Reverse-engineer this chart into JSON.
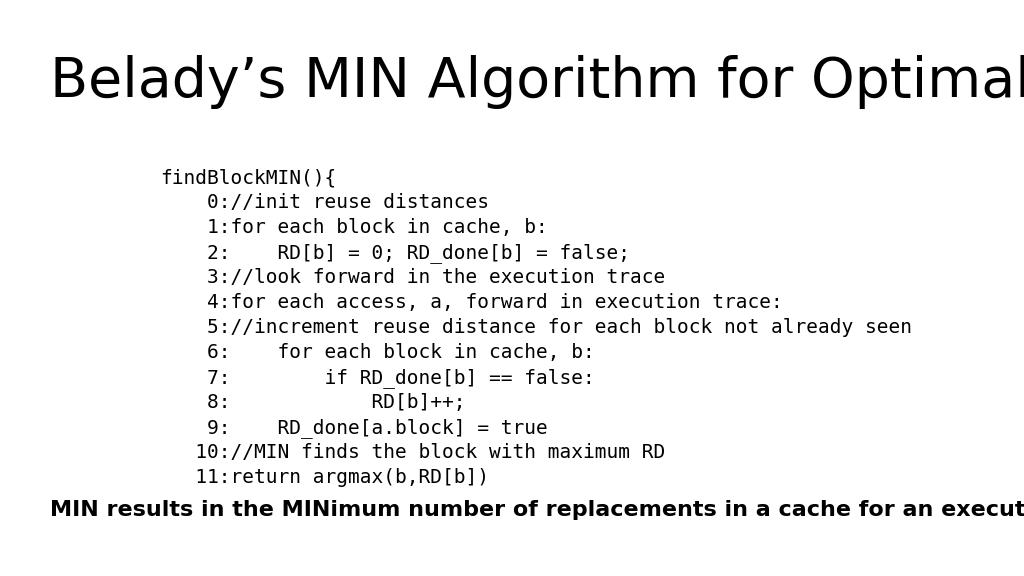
{
  "title": "Belady’s MIN Algorithm for Optimal Replacement",
  "title_fontsize": 40,
  "background_color": "#ffffff",
  "code_lines": [
    "findBlockMIN(){",
    "    0://init reuse distances",
    "    1:for each block in cache, b:",
    "    2:    RD[b] = 0; RD_done[b] = false;",
    "    3://look forward in the execution trace",
    "    4:for each access, a, forward in execution trace:",
    "    5://increment reuse distance for each block not already seen",
    "    6:    for each block in cache, b:",
    "    7:        if RD_done[b] == false:",
    "    8:            RD[b]++;",
    "    9:    RD_done[a.block] = true",
    "   10://MIN finds the block with maximum RD",
    "   11:return argmax(b,RD[b])"
  ],
  "code_fontsize": 14,
  "footer_text": "MIN results in the MINimum number of replacements in a cache for an execution trace.",
  "footer_fontsize": 16,
  "text_color": "#000000"
}
